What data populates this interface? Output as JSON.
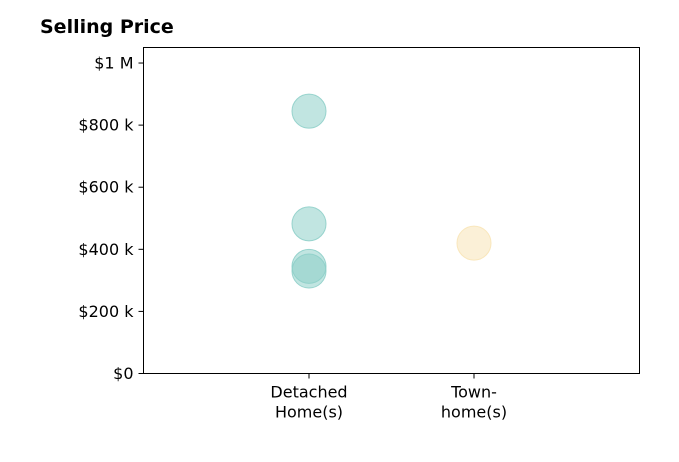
{
  "chart_data": {
    "type": "scatter",
    "title": "Selling Price",
    "xlabel": "",
    "ylabel": "",
    "categories": [
      "Detached\nHome(s)",
      "Town-\nhome(s)"
    ],
    "y_ticks": [
      {
        "value": 0,
        "label": "$0"
      },
      {
        "value": 200000,
        "label": "$200 k"
      },
      {
        "value": 400000,
        "label": "$400 k"
      },
      {
        "value": 600000,
        "label": "$600 k"
      },
      {
        "value": 800000,
        "label": "$800 k"
      },
      {
        "value": 1000000,
        "label": "$1 M"
      }
    ],
    "ylim": [
      0,
      1050000
    ],
    "grid": false,
    "series": [
      {
        "category": "Detached\nHome(s)",
        "color": "#8ecfc9",
        "values": [
          845000,
          482000,
          345000,
          330000
        ]
      },
      {
        "category": "Town-\nhome(s)",
        "color": "#f8e4b6",
        "values": [
          420000
        ]
      }
    ]
  }
}
